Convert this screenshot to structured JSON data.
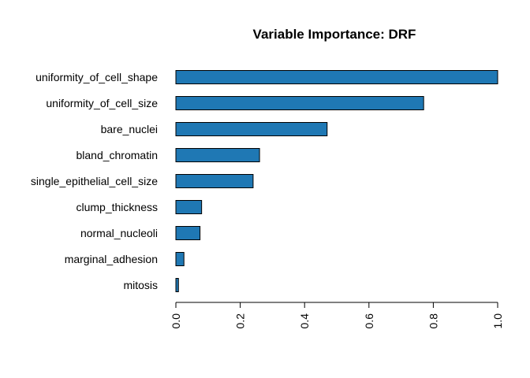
{
  "chart_data": {
    "type": "bar",
    "orientation": "horizontal",
    "title": "Variable Importance: DRF",
    "xlabel": "",
    "ylabel": "",
    "categories": [
      "uniformity_of_cell_shape",
      "uniformity_of_cell_size",
      "bare_nuclei",
      "bland_chromatin",
      "single_epithelial_cell_size",
      "clump_thickness",
      "normal_nucleoli",
      "marginal_adhesion",
      "mitosis"
    ],
    "values": [
      1.0,
      0.77,
      0.47,
      0.26,
      0.24,
      0.08,
      0.075,
      0.025,
      0.008
    ],
    "xlim": [
      0,
      1.0
    ],
    "xticks": [
      0.0,
      0.2,
      0.4,
      0.6,
      0.8,
      1.0
    ],
    "xtick_labels": [
      "0.0",
      "0.2",
      "0.4",
      "0.6",
      "0.8",
      "1.0"
    ],
    "bar_color": "#1F78B4",
    "bar_edge_color": "#000000",
    "grid": false,
    "legend": "none"
  }
}
